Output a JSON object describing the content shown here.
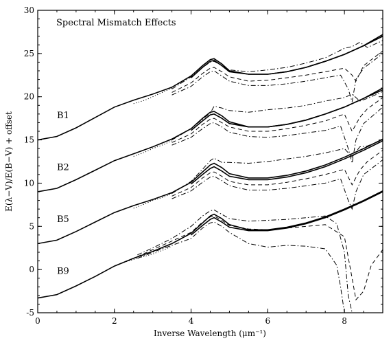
{
  "chart_data": {
    "type": "line",
    "title": "Spectral Mismatch Effects",
    "xlabel": "Inverse Wavelength (μm⁻¹)",
    "ylabel": "E(λ−V)/E(B−V) + offset",
    "xlim": [
      0,
      9
    ],
    "ylim": [
      -5,
      30
    ],
    "x_ticks": [
      0,
      2,
      4,
      6,
      8
    ],
    "y_ticks": [
      -5,
      0,
      5,
      10,
      15,
      20,
      25,
      30
    ],
    "grid": false,
    "annotation_labels": [
      {
        "text": "B1",
        "x": 0.5,
        "y": 17.5
      },
      {
        "text": "B2",
        "x": 0.5,
        "y": 11.5
      },
      {
        "text": "B5",
        "x": 0.5,
        "y": 5.5
      },
      {
        "text": "B9",
        "x": 0.5,
        "y": -0.5
      }
    ],
    "series": [
      {
        "group": "B1",
        "style": "solid",
        "x": [
          0,
          0.5,
          1.0,
          1.5,
          2.0,
          2.5,
          3.0,
          3.5,
          4.0,
          4.3,
          4.5,
          4.6,
          4.8,
          5.0,
          5.5,
          6.0,
          6.5,
          7.0,
          7.5,
          8.0,
          8.5,
          9.0
        ],
        "y": [
          15.0,
          15.4,
          16.4,
          17.6,
          18.8,
          19.6,
          20.3,
          21.1,
          22.4,
          23.6,
          24.3,
          24.4,
          23.8,
          23.0,
          22.6,
          22.6,
          22.9,
          23.4,
          24.1,
          24.9,
          25.9,
          27.2
        ]
      },
      {
        "group": "B1",
        "style": "solid",
        "x": [
          4.0,
          4.3,
          4.5,
          4.6,
          4.8,
          5.0,
          5.5,
          6.0,
          6.5,
          7.0,
          7.5,
          8.0,
          8.5,
          9.0
        ],
        "y": [
          22.2,
          23.4,
          24.1,
          24.2,
          23.6,
          22.9,
          22.6,
          22.6,
          22.9,
          23.4,
          24.1,
          24.9,
          25.9,
          27.0
        ]
      },
      {
        "group": "B1",
        "style": "dashdot",
        "x": [
          3.5,
          4.0,
          4.3,
          4.5,
          4.6,
          4.8,
          5.0,
          5.5,
          6.0,
          6.5,
          7.0,
          7.5,
          8.0,
          8.2,
          8.4,
          8.6,
          9.0
        ],
        "y": [
          20.9,
          22.3,
          23.4,
          24.0,
          24.1,
          23.6,
          23.1,
          22.9,
          23.1,
          23.4,
          23.9,
          24.5,
          25.6,
          25.8,
          26.3,
          25.7,
          26.5
        ]
      },
      {
        "group": "B1",
        "style": "dashed",
        "x": [
          3.5,
          4.0,
          4.3,
          4.5,
          4.6,
          4.8,
          5.0,
          5.5,
          6.0,
          6.5,
          7.0,
          7.5,
          8.0,
          8.2,
          8.3,
          8.5,
          9.0
        ],
        "y": [
          20.5,
          21.6,
          22.7,
          23.3,
          23.4,
          22.9,
          22.3,
          21.8,
          21.9,
          22.2,
          22.5,
          22.9,
          23.3,
          22.5,
          21.8,
          23.6,
          25.3
        ]
      },
      {
        "group": "B1",
        "style": "dashdot",
        "x": [
          3.5,
          4.0,
          4.3,
          4.5,
          4.6,
          4.8,
          5.0,
          5.5,
          6.0,
          6.5,
          7.0,
          7.5,
          7.9,
          8.1,
          8.2,
          8.3,
          8.5,
          9.0
        ],
        "y": [
          20.2,
          21.2,
          22.3,
          22.9,
          23.0,
          22.4,
          21.8,
          21.3,
          21.3,
          21.5,
          21.8,
          22.2,
          22.5,
          20.9,
          19.4,
          22.0,
          23.3,
          25.0
        ]
      },
      {
        "group": "B1",
        "style": "dotted",
        "x": [
          2.5,
          2.8,
          3.0,
          3.3,
          3.5
        ],
        "y": [
          19.2,
          19.6,
          20.0,
          20.6,
          21.0
        ]
      },
      {
        "group": "B2",
        "style": "solid",
        "x": [
          0,
          0.5,
          1.0,
          1.5,
          2.0,
          2.5,
          3.0,
          3.5,
          4.0,
          4.3,
          4.5,
          4.6,
          4.8,
          5.0,
          5.5,
          6.0,
          6.5,
          7.0,
          7.5,
          8.0,
          8.5,
          9.0
        ],
        "y": [
          9.0,
          9.4,
          10.4,
          11.5,
          12.6,
          13.4,
          14.2,
          15.1,
          16.3,
          17.5,
          18.2,
          18.3,
          17.8,
          17.1,
          16.5,
          16.5,
          16.8,
          17.3,
          18.0,
          18.8,
          19.8,
          21.0
        ]
      },
      {
        "group": "B2",
        "style": "solid",
        "x": [
          4.0,
          4.3,
          4.5,
          4.6,
          4.8,
          5.0,
          5.5,
          6.0,
          6.5,
          7.0,
          7.5,
          8.0,
          8.5,
          9.0
        ],
        "y": [
          16.1,
          17.2,
          17.9,
          18.0,
          17.5,
          16.9,
          16.5,
          16.5,
          16.8,
          17.3,
          18.0,
          18.8,
          19.8,
          20.8
        ]
      },
      {
        "group": "B2",
        "style": "dashdot",
        "x": [
          3.5,
          4.0,
          4.3,
          4.5,
          4.6,
          4.8,
          5.0,
          5.5,
          6.0,
          6.5,
          7.0,
          7.5,
          8.0,
          8.2,
          8.4,
          8.6,
          9.0
        ],
        "y": [
          15.0,
          16.3,
          17.4,
          18.1,
          18.9,
          18.7,
          18.4,
          18.2,
          18.5,
          18.7,
          19.0,
          19.5,
          19.9,
          20.3,
          19.5,
          19.8,
          20.6
        ]
      },
      {
        "group": "B2",
        "style": "dashed",
        "x": [
          3.5,
          4.0,
          4.3,
          4.5,
          4.6,
          4.8,
          5.0,
          5.5,
          6.0,
          6.5,
          7.0,
          7.5,
          8.0,
          8.2,
          8.4,
          8.6,
          9.0
        ],
        "y": [
          14.7,
          15.7,
          16.8,
          17.4,
          17.5,
          17.0,
          16.5,
          16.0,
          16.0,
          16.3,
          16.7,
          17.2,
          18.0,
          16.0,
          17.6,
          18.6,
          19.9
        ]
      },
      {
        "group": "B2",
        "style": "dashdot",
        "x": [
          3.5,
          4.0,
          4.3,
          4.5,
          4.6,
          4.8,
          5.0,
          5.5,
          6.0,
          6.5,
          7.0,
          7.5,
          7.9,
          8.1,
          8.2,
          8.3,
          8.5,
          9.0
        ],
        "y": [
          14.4,
          15.3,
          16.3,
          16.9,
          17.0,
          16.5,
          15.9,
          15.4,
          15.3,
          15.5,
          15.8,
          16.1,
          16.6,
          14.0,
          12.3,
          15.0,
          16.9,
          18.8
        ]
      },
      {
        "group": "B2",
        "style": "dotted",
        "x": [
          2.5,
          2.8,
          3.0,
          3.3,
          3.5
        ],
        "y": [
          13.1,
          13.6,
          14.0,
          14.5,
          14.9
        ]
      },
      {
        "group": "B5",
        "style": "solid",
        "x": [
          0,
          0.5,
          1.0,
          1.5,
          2.0,
          2.5,
          3.0,
          3.5,
          4.0,
          4.3,
          4.5,
          4.6,
          4.8,
          5.0,
          5.5,
          6.0,
          6.5,
          7.0,
          7.5,
          8.0,
          8.5,
          9.0
        ],
        "y": [
          3.0,
          3.4,
          4.4,
          5.5,
          6.6,
          7.4,
          8.1,
          8.9,
          10.1,
          11.3,
          12.1,
          12.3,
          11.8,
          11.1,
          10.6,
          10.6,
          10.9,
          11.4,
          12.1,
          13.0,
          14.0,
          15.1
        ]
      },
      {
        "group": "B5",
        "style": "solid",
        "x": [
          4.0,
          4.3,
          4.5,
          4.6,
          4.8,
          5.0,
          5.5,
          6.0,
          6.5,
          7.0,
          7.5,
          8.0,
          8.5,
          9.0
        ],
        "y": [
          9.9,
          11.0,
          11.7,
          11.9,
          11.4,
          10.8,
          10.4,
          10.4,
          10.7,
          11.2,
          11.9,
          12.8,
          13.8,
          14.9
        ]
      },
      {
        "group": "B5",
        "style": "dashdot",
        "x": [
          3.5,
          4.0,
          4.3,
          4.5,
          4.6,
          4.8,
          5.0,
          5.5,
          6.0,
          6.5,
          7.0,
          7.5,
          8.0,
          8.2,
          8.4,
          8.6,
          9.0
        ],
        "y": [
          8.8,
          10.2,
          11.6,
          12.6,
          12.9,
          12.4,
          12.4,
          12.3,
          12.5,
          12.8,
          13.1,
          13.5,
          14.0,
          13.0,
          14.2,
          14.3,
          15.0
        ]
      },
      {
        "group": "B5",
        "style": "dashed",
        "x": [
          3.5,
          4.0,
          4.3,
          4.5,
          4.6,
          4.8,
          5.0,
          5.5,
          6.0,
          6.5,
          7.0,
          7.5,
          8.0,
          8.2,
          8.4,
          8.6,
          9.0
        ],
        "y": [
          8.5,
          9.5,
          10.6,
          11.2,
          11.3,
          10.8,
          10.2,
          9.8,
          9.8,
          10.1,
          10.5,
          11.0,
          11.6,
          9.8,
          11.5,
          12.5,
          13.8
        ]
      },
      {
        "group": "B5",
        "style": "dashdot",
        "x": [
          3.5,
          4.0,
          4.3,
          4.5,
          4.6,
          4.8,
          5.0,
          5.5,
          6.0,
          6.5,
          7.0,
          7.5,
          7.9,
          8.1,
          8.2,
          8.3,
          8.5,
          9.0
        ],
        "y": [
          8.2,
          9.1,
          10.1,
          10.7,
          10.8,
          10.3,
          9.7,
          9.2,
          9.2,
          9.4,
          9.7,
          10.0,
          10.5,
          8.0,
          7.0,
          9.0,
          11.0,
          12.7
        ]
      },
      {
        "group": "B5",
        "style": "dotted",
        "x": [
          2.5,
          2.8,
          3.0,
          3.3,
          3.5
        ],
        "y": [
          7.1,
          7.6,
          8.0,
          8.4,
          8.8
        ]
      },
      {
        "group": "B9",
        "style": "solid",
        "x": [
          0,
          0.5,
          1.0,
          1.5,
          2.0,
          2.5,
          3.0,
          3.5,
          4.0,
          4.3,
          4.5,
          4.6,
          4.8,
          5.0,
          5.5,
          6.0,
          6.5,
          7.0,
          7.5,
          8.0,
          8.5,
          9.0
        ],
        "y": [
          -3.3,
          -2.9,
          -1.9,
          -0.8,
          0.4,
          1.3,
          2.1,
          3.0,
          4.2,
          5.4,
          6.2,
          6.4,
          5.9,
          5.2,
          4.6,
          4.6,
          4.9,
          5.4,
          6.1,
          7.0,
          8.0,
          9.1
        ]
      },
      {
        "group": "B9",
        "style": "solid",
        "x": [
          4.0,
          4.3,
          4.5,
          4.6,
          4.8,
          5.0,
          5.5,
          6.0,
          6.5,
          7.0,
          7.5,
          8.0,
          8.5,
          9.0
        ],
        "y": [
          4.0,
          5.1,
          5.8,
          6.0,
          5.5,
          4.9,
          4.5,
          4.5,
          4.8,
          5.3,
          6.0,
          6.9,
          7.9,
          9.0
        ]
      },
      {
        "group": "B9",
        "style": "dashdot",
        "x": [
          2.6,
          3.0,
          3.5,
          4.0,
          4.3,
          4.5,
          4.6,
          4.8,
          5.0,
          5.5,
          6.0,
          6.5,
          7.0,
          7.5,
          7.8,
          8.0,
          8.1,
          8.2,
          8.3
        ],
        "y": [
          1.7,
          2.5,
          3.6,
          5.0,
          6.2,
          6.8,
          6.9,
          6.4,
          5.9,
          5.6,
          5.7,
          5.8,
          6.0,
          6.2,
          5.3,
          2.0,
          -3.0,
          -5.0,
          -5.0
        ]
      },
      {
        "group": "B9",
        "style": "dashed",
        "x": [
          2.6,
          3.0,
          3.5,
          4.0,
          4.3,
          4.5,
          4.6,
          4.8,
          5.0,
          5.5,
          6.0,
          6.5,
          7.0,
          7.5,
          8.0,
          8.2,
          8.3,
          8.5,
          8.7,
          9.0
        ],
        "y": [
          1.5,
          2.3,
          3.3,
          4.3,
          5.5,
          6.1,
          6.2,
          5.7,
          5.1,
          4.7,
          4.6,
          4.8,
          5.0,
          5.2,
          3.8,
          -1.0,
          -3.5,
          -2.5,
          0.5,
          2.3
        ]
      },
      {
        "group": "B9",
        "style": "dashdot",
        "x": [
          2.6,
          3.0,
          3.5,
          4.0,
          4.3,
          4.5,
          4.6,
          4.8,
          5.0,
          5.5,
          6.0,
          6.5,
          7.0,
          7.5,
          7.8,
          7.9,
          8.0,
          8.1,
          8.2,
          8.3
        ],
        "y": [
          1.3,
          2.0,
          2.8,
          3.6,
          4.8,
          5.4,
          5.5,
          5.0,
          4.3,
          3.0,
          2.6,
          2.8,
          2.7,
          2.4,
          0.5,
          -2.0,
          -5.0,
          -5.0,
          -5.0,
          -5.0
        ]
      },
      {
        "group": "B9",
        "style": "dotted",
        "x": [
          2.0,
          2.3,
          2.6,
          3.0,
          3.3,
          3.5
        ],
        "y": [
          0.4,
          0.9,
          1.3,
          1.8,
          2.3,
          2.7
        ]
      }
    ]
  }
}
